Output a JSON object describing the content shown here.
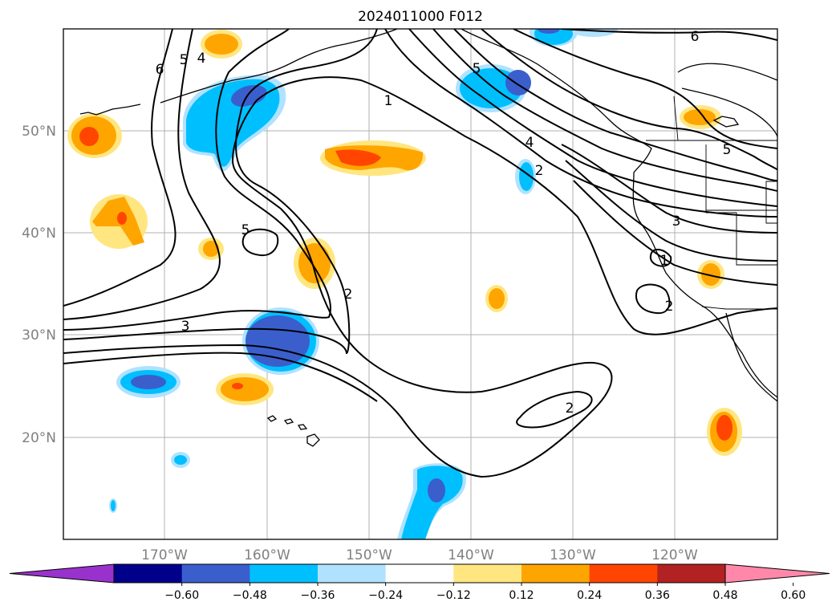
{
  "title": "2024011000 F012",
  "lon_labels": [
    "170°W",
    "160°W",
    "150°W",
    "140°W",
    "130°W",
    "120°W"
  ],
  "lat_labels": [
    "50°N",
    "40°N",
    "30°N",
    "20°N"
  ],
  "colorbar": {
    "tick_labels": [
      "−0.60",
      "−0.48",
      "−0.36",
      "−0.24",
      "−0.12",
      "0.12",
      "0.24",
      "0.36",
      "0.48",
      "0.60"
    ],
    "colors": [
      "#9932cc",
      "#00008b",
      "#3a5fcd",
      "#00bfff",
      "#b0e2ff",
      "#ffffff",
      "#ffe680",
      "#ffa500",
      "#ff4500",
      "#b22222",
      "#ff88aa"
    ]
  },
  "contour_labels": [
    "6",
    "5",
    "4",
    "1",
    "5",
    "4",
    "2",
    "6",
    "5",
    "3",
    "1",
    "2",
    "5",
    "2",
    "3",
    "2"
  ]
}
